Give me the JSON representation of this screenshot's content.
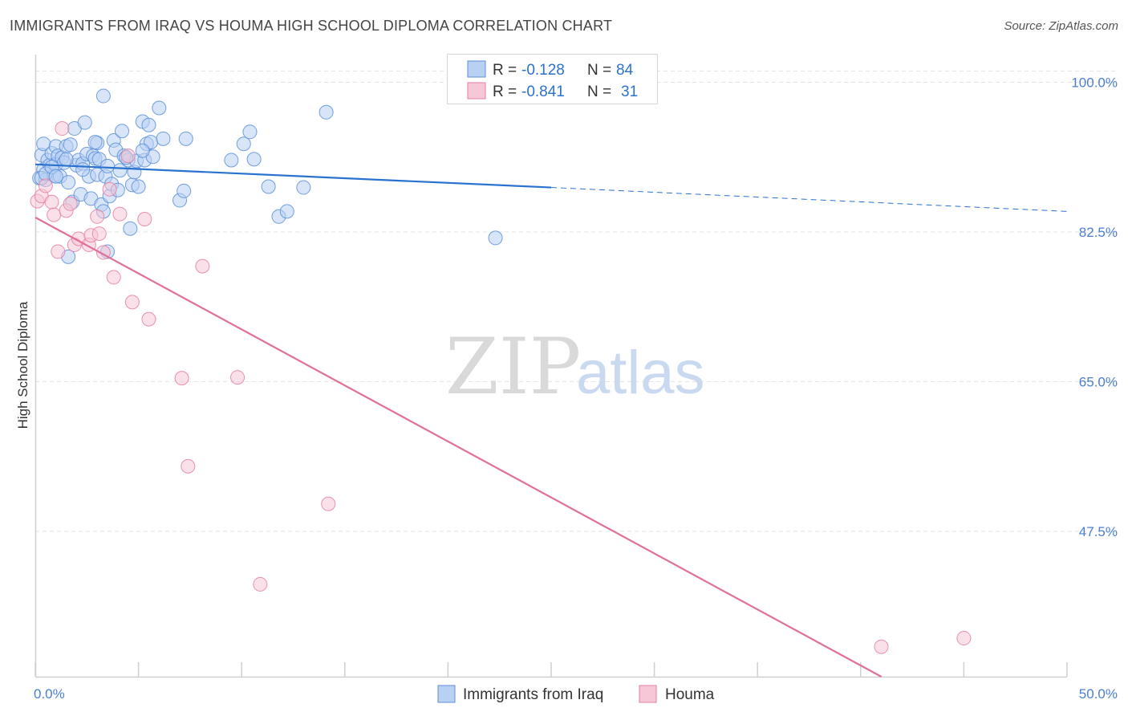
{
  "header": {
    "title": "IMMIGRANTS FROM IRAQ VS HOUMA HIGH SCHOOL DIPLOMA CORRELATION CHART",
    "source": "Source: ZipAtlas.com"
  },
  "watermark": {
    "zip": "ZIP",
    "atlas": "atlas"
  },
  "colors": {
    "blue": "#5b8fd9",
    "blue_fill": "#b8d0f2",
    "blue_line": "#2a72d0",
    "pink": "#e57fa3",
    "pink_fill": "#f6c7d6",
    "pink_line": "#e0709a",
    "axis_text": "#4a7fd0",
    "grid": "#e3e3e3"
  },
  "stats": {
    "iraq": {
      "r_label": "R =",
      "r": "-0.128",
      "n_label": "N =",
      "n": "84"
    },
    "houma": {
      "r_label": "R =",
      "r": "-0.841",
      "n_label": "N =",
      "n": "31"
    }
  },
  "chart_data": {
    "type": "scatter",
    "title": "IMMIGRANTS FROM IRAQ VS HOUMA HIGH SCHOOL DIPLOMA CORRELATION CHART",
    "xlabel": "",
    "ylabel": "High School Diploma",
    "xlim": [
      0,
      50
    ],
    "ylim": [
      30.5,
      102.3
    ],
    "x_tick_labels": [
      {
        "value": 0,
        "label": "0.0%"
      },
      {
        "value": 50,
        "label": "50.0%"
      }
    ],
    "x_minor_ticks": [
      0,
      5,
      10,
      15,
      20,
      25,
      30,
      35,
      40,
      45,
      50
    ],
    "y_ticks": [
      {
        "value": 100,
        "label": "100.0%"
      },
      {
        "value": 82.5,
        "label": "82.5%"
      },
      {
        "value": 65,
        "label": "65.0%"
      },
      {
        "value": 47.5,
        "label": "47.5%"
      }
    ],
    "grid": true,
    "legend_position": "bottom",
    "series": [
      {
        "name": "Immigrants from Iraq",
        "color": "#5b8fd9",
        "trend": {
          "x0": 0,
          "y0": 90.4,
          "x1": 25,
          "y1": 87.7,
          "dashed_to_x": 50,
          "dashed_to_y": 84.9
        },
        "points": [
          [
            0.2,
            88.8
          ],
          [
            0.3,
            91.5
          ],
          [
            0.4,
            92.8
          ],
          [
            0.4,
            89.8
          ],
          [
            0.5,
            88.6
          ],
          [
            0.6,
            90.9
          ],
          [
            0.7,
            90.3
          ],
          [
            0.8,
            91.7
          ],
          [
            0.9,
            89.1
          ],
          [
            1.0,
            90.4
          ],
          [
            1.0,
            92.5
          ],
          [
            1.1,
            91.4
          ],
          [
            1.2,
            89.0
          ],
          [
            1.3,
            91.2
          ],
          [
            1.4,
            90.6
          ],
          [
            1.5,
            92.5
          ],
          [
            1.6,
            88.3
          ],
          [
            1.7,
            92.7
          ],
          [
            1.8,
            86.0
          ],
          [
            1.9,
            94.6
          ],
          [
            2.0,
            90.3
          ],
          [
            2.1,
            90.9
          ],
          [
            2.2,
            86.9
          ],
          [
            2.3,
            90.5
          ],
          [
            2.4,
            95.3
          ],
          [
            2.5,
            91.6
          ],
          [
            2.6,
            89.0
          ],
          [
            2.7,
            86.4
          ],
          [
            2.8,
            91.4
          ],
          [
            2.9,
            91.1
          ],
          [
            3.0,
            92.9
          ],
          [
            3.0,
            89.2
          ],
          [
            3.1,
            91.0
          ],
          [
            3.2,
            85.7
          ],
          [
            3.3,
            84.9
          ],
          [
            3.4,
            89.0
          ],
          [
            3.5,
            80.2
          ],
          [
            3.6,
            86.7
          ],
          [
            3.7,
            88.1
          ],
          [
            3.8,
            93.2
          ],
          [
            3.9,
            92.1
          ],
          [
            4.0,
            87.4
          ],
          [
            4.1,
            89.7
          ],
          [
            4.2,
            94.3
          ],
          [
            4.3,
            91.4
          ],
          [
            4.5,
            90.9
          ],
          [
            4.6,
            82.9
          ],
          [
            4.7,
            88.0
          ],
          [
            4.8,
            89.5
          ],
          [
            4.9,
            90.8
          ],
          [
            5.0,
            87.8
          ],
          [
            5.2,
            95.4
          ],
          [
            5.3,
            90.9
          ],
          [
            5.4,
            92.8
          ],
          [
            5.5,
            95.0
          ],
          [
            5.6,
            93.0
          ],
          [
            5.7,
            91.3
          ],
          [
            5.2,
            92.0
          ],
          [
            6.0,
            97.0
          ],
          [
            6.2,
            93.4
          ],
          [
            7.0,
            86.2
          ],
          [
            7.2,
            87.3
          ],
          [
            7.3,
            93.4
          ],
          [
            9.5,
            90.9
          ],
          [
            10.1,
            92.8
          ],
          [
            10.4,
            94.2
          ],
          [
            10.6,
            91.0
          ],
          [
            11.3,
            87.8
          ],
          [
            11.8,
            84.3
          ],
          [
            12.2,
            84.9
          ],
          [
            13.0,
            87.7
          ],
          [
            14.1,
            96.5
          ],
          [
            22.3,
            81.8
          ],
          [
            3.3,
            98.4
          ],
          [
            0.3,
            88.8
          ],
          [
            0.5,
            89.3
          ],
          [
            0.8,
            90.1
          ],
          [
            1.0,
            89.0
          ],
          [
            2.3,
            89.8
          ],
          [
            3.5,
            90.2
          ],
          [
            1.5,
            91.0
          ],
          [
            2.9,
            93.0
          ],
          [
            4.4,
            91.2
          ],
          [
            1.6,
            79.6
          ]
        ]
      },
      {
        "name": "Houma",
        "color": "#e57fa3",
        "trend": {
          "x0": 0,
          "y0": 84.2,
          "x1": 41,
          "y1": 30.5
        },
        "points": [
          [
            0.1,
            86.1
          ],
          [
            0.3,
            86.7
          ],
          [
            0.5,
            87.9
          ],
          [
            0.8,
            86.0
          ],
          [
            0.9,
            84.5
          ],
          [
            1.1,
            80.2
          ],
          [
            1.3,
            94.6
          ],
          [
            1.5,
            85.0
          ],
          [
            1.7,
            85.8
          ],
          [
            1.9,
            81.0
          ],
          [
            2.1,
            81.7
          ],
          [
            2.6,
            81.0
          ],
          [
            2.7,
            82.1
          ],
          [
            3.0,
            84.3
          ],
          [
            3.1,
            82.3
          ],
          [
            3.3,
            80.1
          ],
          [
            3.6,
            87.5
          ],
          [
            3.8,
            77.2
          ],
          [
            4.1,
            84.6
          ],
          [
            4.5,
            91.4
          ],
          [
            4.7,
            74.3
          ],
          [
            5.3,
            84.0
          ],
          [
            5.5,
            72.3
          ],
          [
            7.1,
            65.4
          ],
          [
            7.4,
            55.1
          ],
          [
            8.1,
            78.5
          ],
          [
            9.8,
            65.5
          ],
          [
            10.9,
            41.3
          ],
          [
            14.2,
            50.7
          ],
          [
            41.0,
            34.0
          ],
          [
            45.0,
            35.0
          ]
        ]
      }
    ]
  }
}
